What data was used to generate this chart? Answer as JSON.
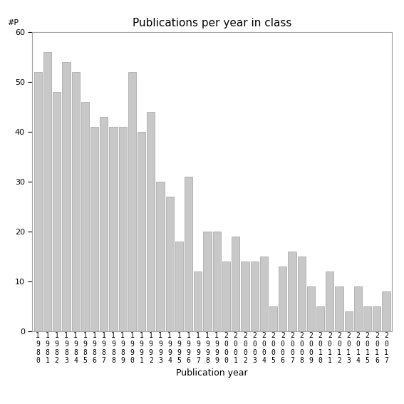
{
  "title": "Publications per year in class",
  "xlabel": "Publication year",
  "ylabel_text": "#P",
  "ylim": [
    0,
    60
  ],
  "yticks": [
    0,
    10,
    20,
    30,
    40,
    50,
    60
  ],
  "bar_color": "#c8c8c8",
  "bar_edge_color": "#a0a0a0",
  "background_color": "#ffffff",
  "years": [
    "1980",
    "1981",
    "1982",
    "1983",
    "1984",
    "1985",
    "1986",
    "1987",
    "1988",
    "1989",
    "1990",
    "1991",
    "1992",
    "1993",
    "1994",
    "1995",
    "1996",
    "1997",
    "1998",
    "1999",
    "2000",
    "2001",
    "2002",
    "2003",
    "2004",
    "2005",
    "2006",
    "2007",
    "2008",
    "2009",
    "2010",
    "2011",
    "2012",
    "2013",
    "2014",
    "2015",
    "2016",
    "2017"
  ],
  "values": [
    52,
    56,
    48,
    54,
    52,
    46,
    41,
    43,
    41,
    41,
    52,
    40,
    44,
    30,
    27,
    18,
    31,
    12,
    20,
    20,
    14,
    19,
    14,
    14,
    15,
    5,
    13,
    16,
    15,
    9,
    5,
    12,
    9,
    4,
    9,
    5,
    5,
    8
  ],
  "title_fontsize": 11,
  "xlabel_fontsize": 9,
  "ytick_fontsize": 8,
  "xtick_fontsize": 7
}
